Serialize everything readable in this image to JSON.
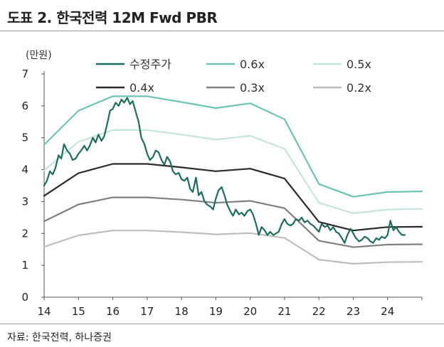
{
  "header": {
    "title": "도표 2. 한국전력 12M Fwd PBR"
  },
  "footer": {
    "source": "자료: 한국전력, 하나증권"
  },
  "chart_data": {
    "type": "line",
    "title": "한국전력 12M Fwd PBR",
    "ylabel": "(만원)",
    "xlabel": "",
    "ylim": [
      0,
      7
    ],
    "xlim": [
      2014,
      2025
    ],
    "yticks": [
      0,
      1,
      2,
      3,
      4,
      5,
      6,
      7
    ],
    "xticks": [
      2014,
      2015,
      2016,
      2017,
      2018,
      2019,
      2020,
      2021,
      2022,
      2023,
      2024
    ],
    "xtick_labels": [
      "14",
      "15",
      "16",
      "17",
      "18",
      "19",
      "20",
      "21",
      "22",
      "23",
      "24"
    ],
    "grid": false,
    "legend_position": "top",
    "series": [
      {
        "name": "수정주가",
        "color": "#1b6e5e",
        "width": 2.2,
        "points": [
          [
            2014.0,
            3.5
          ],
          [
            2014.08,
            3.65
          ],
          [
            2014.17,
            3.95
          ],
          [
            2014.25,
            3.85
          ],
          [
            2014.33,
            4.05
          ],
          [
            2014.42,
            4.45
          ],
          [
            2014.5,
            4.35
          ],
          [
            2014.58,
            4.8
          ],
          [
            2014.67,
            4.6
          ],
          [
            2014.75,
            4.5
          ],
          [
            2014.83,
            4.3
          ],
          [
            2014.92,
            4.35
          ],
          [
            2015.0,
            4.5
          ],
          [
            2015.08,
            4.6
          ],
          [
            2015.17,
            4.75
          ],
          [
            2015.25,
            4.6
          ],
          [
            2015.33,
            4.75
          ],
          [
            2015.42,
            5.0
          ],
          [
            2015.5,
            4.85
          ],
          [
            2015.58,
            5.1
          ],
          [
            2015.67,
            4.9
          ],
          [
            2015.75,
            5.05
          ],
          [
            2015.83,
            5.4
          ],
          [
            2015.92,
            5.85
          ],
          [
            2016.0,
            5.9
          ],
          [
            2016.08,
            6.1
          ],
          [
            2016.17,
            6.0
          ],
          [
            2016.25,
            6.2
          ],
          [
            2016.33,
            6.1
          ],
          [
            2016.42,
            6.25
          ],
          [
            2016.5,
            6.05
          ],
          [
            2016.58,
            6.15
          ],
          [
            2016.67,
            5.8
          ],
          [
            2016.75,
            5.5
          ],
          [
            2016.83,
            5.0
          ],
          [
            2016.92,
            4.8
          ],
          [
            2017.0,
            4.5
          ],
          [
            2017.08,
            4.3
          ],
          [
            2017.17,
            4.4
          ],
          [
            2017.25,
            4.6
          ],
          [
            2017.33,
            4.55
          ],
          [
            2017.42,
            4.3
          ],
          [
            2017.5,
            4.15
          ],
          [
            2017.58,
            4.4
          ],
          [
            2017.67,
            4.25
          ],
          [
            2017.75,
            3.95
          ],
          [
            2017.83,
            3.85
          ],
          [
            2017.92,
            3.9
          ],
          [
            2018.0,
            3.7
          ],
          [
            2018.08,
            3.65
          ],
          [
            2018.17,
            3.75
          ],
          [
            2018.25,
            3.4
          ],
          [
            2018.33,
            3.3
          ],
          [
            2018.42,
            3.75
          ],
          [
            2018.5,
            3.2
          ],
          [
            2018.58,
            3.3
          ],
          [
            2018.67,
            3.0
          ],
          [
            2018.75,
            2.9
          ],
          [
            2018.83,
            2.85
          ],
          [
            2018.92,
            2.75
          ],
          [
            2019.0,
            3.1
          ],
          [
            2019.08,
            3.35
          ],
          [
            2019.17,
            3.45
          ],
          [
            2019.25,
            3.2
          ],
          [
            2019.33,
            2.9
          ],
          [
            2019.42,
            2.7
          ],
          [
            2019.5,
            2.55
          ],
          [
            2019.58,
            2.75
          ],
          [
            2019.67,
            2.6
          ],
          [
            2019.75,
            2.65
          ],
          [
            2019.83,
            2.55
          ],
          [
            2019.92,
            2.7
          ],
          [
            2020.0,
            2.75
          ],
          [
            2020.08,
            2.6
          ],
          [
            2020.17,
            2.3
          ],
          [
            2020.25,
            1.95
          ],
          [
            2020.33,
            2.2
          ],
          [
            2020.42,
            2.1
          ],
          [
            2020.5,
            1.95
          ],
          [
            2020.58,
            2.05
          ],
          [
            2020.67,
            1.95
          ],
          [
            2020.75,
            2.0
          ],
          [
            2020.83,
            2.05
          ],
          [
            2020.92,
            2.3
          ],
          [
            2021.0,
            2.45
          ],
          [
            2021.08,
            2.3
          ],
          [
            2021.17,
            2.25
          ],
          [
            2021.25,
            2.3
          ],
          [
            2021.33,
            2.45
          ],
          [
            2021.42,
            2.4
          ],
          [
            2021.5,
            2.5
          ],
          [
            2021.58,
            2.35
          ],
          [
            2021.67,
            2.4
          ],
          [
            2021.75,
            2.3
          ],
          [
            2021.83,
            2.25
          ],
          [
            2021.92,
            2.15
          ],
          [
            2022.0,
            2.05
          ],
          [
            2022.08,
            2.3
          ],
          [
            2022.17,
            2.2
          ],
          [
            2022.25,
            2.25
          ],
          [
            2022.33,
            2.1
          ],
          [
            2022.42,
            2.2
          ],
          [
            2022.5,
            2.05
          ],
          [
            2022.58,
            2.0
          ],
          [
            2022.67,
            1.85
          ],
          [
            2022.75,
            1.7
          ],
          [
            2022.83,
            1.95
          ],
          [
            2022.92,
            2.15
          ],
          [
            2023.0,
            2.0
          ],
          [
            2023.08,
            1.85
          ],
          [
            2023.17,
            1.75
          ],
          [
            2023.25,
            1.8
          ],
          [
            2023.33,
            1.9
          ],
          [
            2023.42,
            1.85
          ],
          [
            2023.5,
            1.75
          ],
          [
            2023.58,
            1.7
          ],
          [
            2023.67,
            1.85
          ],
          [
            2023.75,
            1.8
          ],
          [
            2023.83,
            1.9
          ],
          [
            2023.92,
            1.85
          ],
          [
            2024.0,
            1.95
          ],
          [
            2024.08,
            2.4
          ],
          [
            2024.17,
            2.1
          ],
          [
            2024.25,
            2.2
          ],
          [
            2024.33,
            2.05
          ],
          [
            2024.42,
            1.95
          ],
          [
            2024.5,
            1.95
          ]
        ]
      },
      {
        "name": "0.6x",
        "color": "#6cc4b4",
        "width": 2.2,
        "points": [
          [
            2014.0,
            4.78
          ],
          [
            2015.0,
            5.85
          ],
          [
            2016.0,
            6.3
          ],
          [
            2017.0,
            6.3
          ],
          [
            2018.0,
            6.12
          ],
          [
            2019.0,
            5.93
          ],
          [
            2020.0,
            6.08
          ],
          [
            2021.0,
            5.58
          ],
          [
            2022.0,
            3.55
          ],
          [
            2023.0,
            3.15
          ],
          [
            2024.0,
            3.3
          ],
          [
            2025.0,
            3.32
          ]
        ]
      },
      {
        "name": "0.5x",
        "color": "#c4e4de",
        "width": 2.2,
        "points": [
          [
            2014.0,
            3.98
          ],
          [
            2015.0,
            4.87
          ],
          [
            2016.0,
            5.24
          ],
          [
            2017.0,
            5.24
          ],
          [
            2018.0,
            5.1
          ],
          [
            2019.0,
            4.94
          ],
          [
            2020.0,
            5.06
          ],
          [
            2021.0,
            4.65
          ],
          [
            2022.0,
            2.96
          ],
          [
            2023.0,
            2.63
          ],
          [
            2024.0,
            2.75
          ],
          [
            2025.0,
            2.77
          ]
        ]
      },
      {
        "name": "0.4x",
        "color": "#2a2a2a",
        "width": 2.2,
        "points": [
          [
            2014.0,
            3.18
          ],
          [
            2015.0,
            3.89
          ],
          [
            2016.0,
            4.18
          ],
          [
            2017.0,
            4.18
          ],
          [
            2018.0,
            4.07
          ],
          [
            2019.0,
            3.95
          ],
          [
            2020.0,
            4.03
          ],
          [
            2021.0,
            3.72
          ],
          [
            2022.0,
            2.36
          ],
          [
            2023.0,
            2.09
          ],
          [
            2024.0,
            2.2
          ],
          [
            2025.0,
            2.21
          ]
        ]
      },
      {
        "name": "0.3x",
        "color": "#808080",
        "width": 2.2,
        "points": [
          [
            2014.0,
            2.38
          ],
          [
            2015.0,
            2.91
          ],
          [
            2016.0,
            3.13
          ],
          [
            2017.0,
            3.13
          ],
          [
            2018.0,
            3.06
          ],
          [
            2019.0,
            2.96
          ],
          [
            2020.0,
            3.02
          ],
          [
            2021.0,
            2.79
          ],
          [
            2022.0,
            1.77
          ],
          [
            2023.0,
            1.57
          ],
          [
            2024.0,
            1.65
          ],
          [
            2025.0,
            1.66
          ]
        ]
      },
      {
        "name": "0.2x",
        "color": "#bdbdbd",
        "width": 2.2,
        "points": [
          [
            2014.0,
            1.58
          ],
          [
            2015.0,
            1.94
          ],
          [
            2016.0,
            2.09
          ],
          [
            2017.0,
            2.09
          ],
          [
            2018.0,
            2.04
          ],
          [
            2019.0,
            1.97
          ],
          [
            2020.0,
            2.01
          ],
          [
            2021.0,
            1.86
          ],
          [
            2022.0,
            1.18
          ],
          [
            2023.0,
            1.05
          ],
          [
            2024.0,
            1.1
          ],
          [
            2025.0,
            1.11
          ]
        ]
      }
    ]
  }
}
